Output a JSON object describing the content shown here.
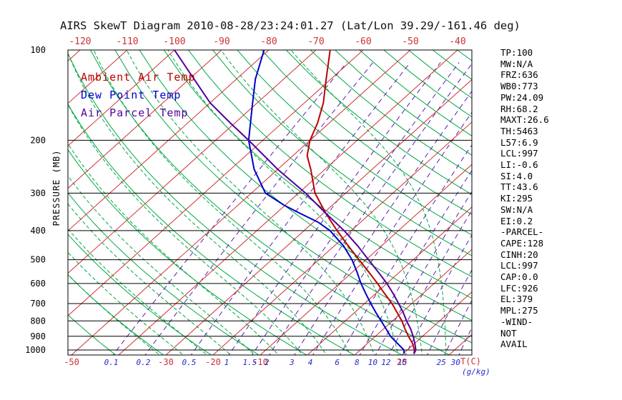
{
  "title": "AIRS SkewT Diagram 2010-08-28/23:24:01.27 (Lat/Lon 39.29/-161.46 deg)",
  "legend": {
    "ambient": "Ambient Air Temp",
    "dewpoint": "Dew Point Temp",
    "parcel": "Air Parcel Temp"
  },
  "axes": {
    "pressure_label": "PRESSURE (MB)",
    "pressure_ticks": [
      100,
      200,
      300,
      400,
      500,
      600,
      700,
      800,
      900,
      1000
    ],
    "top_temp_ticks": [
      -120,
      -110,
      -100,
      -90,
      -80,
      -70,
      -60,
      -50,
      -40
    ],
    "bottom_temp_ticks": [
      -50,
      -30,
      -20,
      -10,
      20
    ],
    "temp_unit_label": "T(C)",
    "mixing_unit_label": "(g/kg)",
    "mixing_label_values": [
      0.1,
      0.2,
      0.5,
      1,
      1.5,
      2,
      3,
      4,
      6,
      8,
      10,
      12,
      15,
      25,
      30
    ],
    "mixing_line_values": [
      0.1,
      0.2,
      0.5,
      1,
      1.5,
      2,
      3,
      4,
      6,
      8,
      10,
      12,
      15,
      20,
      25,
      30
    ]
  },
  "colors": {
    "isotherm": "#cc3333",
    "adiabat": "#00a845",
    "mixing_line": "#5a1fb0",
    "mixing_label": "#2929cc",
    "ambient": "#bb0000",
    "dewpoint": "#0000c8",
    "parcel": "#52009c",
    "axis": "#000000"
  },
  "stats": [
    "TP:100",
    "MW:N/A",
    "FRZ:636",
    "WB0:773",
    "PW:24.09",
    "RH:68.2",
    "MAXT:26.6",
    "TH:5463",
    "L57:6.9",
    "LCL:997",
    "LI:-0.6",
    "SI:4.0",
    "TT:43.6",
    "KI:295",
    "SW:N/A",
    "EI:0.2",
    "-PARCEL-",
    "CAPE:128",
    "CINH:20",
    "LCL:997",
    "CAP:0.0",
    "LFC:926",
    "EL:379",
    "MPL:275",
    "-WIND-",
    "NOT",
    "AVAIL"
  ],
  "chart_data": {
    "type": "line",
    "title": "AIRS SkewT Diagram",
    "x_axis": {
      "label": "T(C)",
      "skewed": true,
      "top_tick_range": [
        -120,
        -40
      ],
      "bottom_tick_range": [
        -50,
        20
      ]
    },
    "y_axis": {
      "label": "PRESSURE (MB)",
      "scale": "log",
      "range": [
        100,
        1050
      ]
    },
    "isotherms_C": {
      "start": -130,
      "end": 40,
      "step": 10
    },
    "dry_adiabats_theta_K": {
      "start": 220,
      "end": 450,
      "step": 10
    },
    "moist_adiabats_surface_C": {
      "start": -30,
      "end": 30,
      "step": 5
    },
    "series": [
      {
        "name": "Ambient Air Temp",
        "color_key": "ambient",
        "points": [
          [
            100,
            -67
          ],
          [
            125,
            -61
          ],
          [
            150,
            -56
          ],
          [
            175,
            -52.5
          ],
          [
            200,
            -50
          ],
          [
            225,
            -47
          ],
          [
            250,
            -43
          ],
          [
            300,
            -36.5
          ],
          [
            350,
            -29.5
          ],
          [
            400,
            -23
          ],
          [
            450,
            -17
          ],
          [
            500,
            -11.5
          ],
          [
            550,
            -6.5
          ],
          [
            600,
            -2
          ],
          [
            650,
            2
          ],
          [
            700,
            5.8
          ],
          [
            750,
            9
          ],
          [
            800,
            12
          ],
          [
            850,
            14.5
          ],
          [
            900,
            17
          ],
          [
            950,
            19.5
          ],
          [
            1000,
            21.5
          ],
          [
            1030,
            22.3
          ]
        ]
      },
      {
        "name": "Dew Point Temp",
        "color_key": "dewpoint",
        "points": [
          [
            100,
            -81
          ],
          [
            125,
            -76
          ],
          [
            150,
            -71
          ],
          [
            200,
            -63
          ],
          [
            250,
            -55
          ],
          [
            300,
            -47
          ],
          [
            330,
            -40
          ],
          [
            350,
            -35
          ],
          [
            375,
            -29
          ],
          [
            400,
            -24.5
          ],
          [
            450,
            -18
          ],
          [
            500,
            -13
          ],
          [
            550,
            -9
          ],
          [
            600,
            -5.5
          ],
          [
            650,
            -2
          ],
          [
            700,
            1.3
          ],
          [
            750,
            4.5
          ],
          [
            800,
            7.6
          ],
          [
            850,
            10.5
          ],
          [
            900,
            13.2
          ],
          [
            950,
            16.3
          ],
          [
            1000,
            19.3
          ],
          [
            1030,
            20.2
          ]
        ]
      },
      {
        "name": "Air Parcel Temp",
        "color_key": "parcel",
        "points": [
          [
            100,
            -100
          ],
          [
            125,
            -89
          ],
          [
            150,
            -80
          ],
          [
            175,
            -71
          ],
          [
            200,
            -63
          ],
          [
            250,
            -50
          ],
          [
            300,
            -38.5
          ],
          [
            350,
            -29.5
          ],
          [
            400,
            -21.5
          ],
          [
            450,
            -15
          ],
          [
            500,
            -9.5
          ],
          [
            550,
            -4.5
          ],
          [
            600,
            0
          ],
          [
            650,
            3.8
          ],
          [
            700,
            7.2
          ],
          [
            750,
            10.3
          ],
          [
            800,
            13
          ],
          [
            850,
            15.7
          ],
          [
            900,
            18
          ],
          [
            950,
            20
          ],
          [
            1000,
            21.8
          ],
          [
            1030,
            22.3
          ]
        ]
      }
    ]
  }
}
